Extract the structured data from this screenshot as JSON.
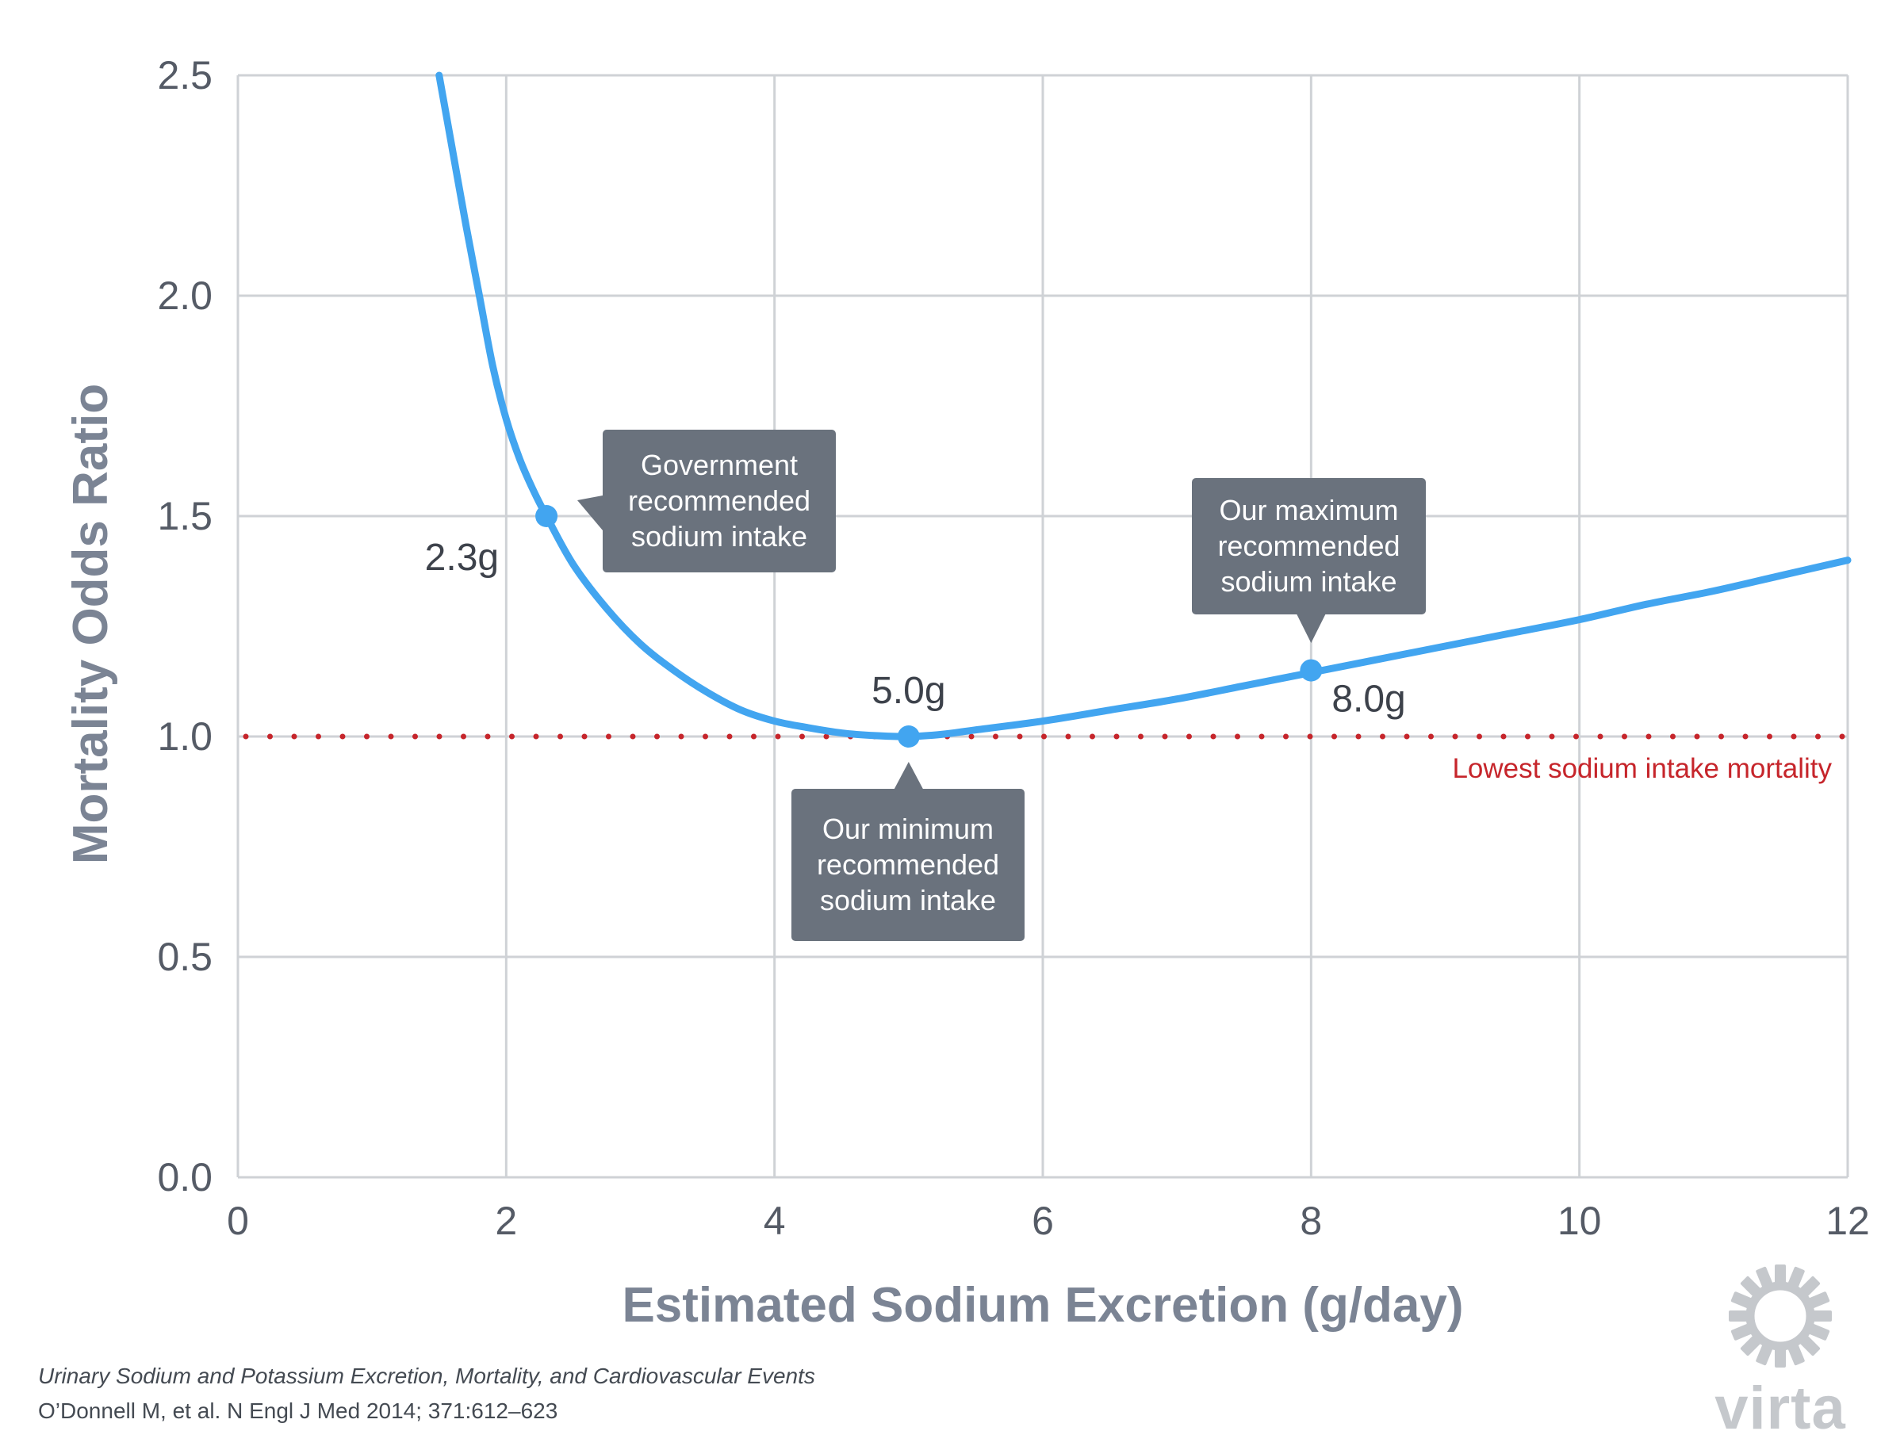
{
  "chart_data": {
    "type": "line",
    "xlabel": "Estimated Sodium Excretion (g/day)",
    "ylabel": "Mortality Odds Ratio",
    "xlim": [
      0,
      12
    ],
    "ylim": [
      0,
      2.5
    ],
    "x_ticks": [
      "0",
      "2",
      "4",
      "6",
      "8",
      "10",
      "12"
    ],
    "y_ticks": [
      "0.0",
      "0.5",
      "1.0",
      "1.5",
      "2.0",
      "2.5"
    ],
    "grid": true,
    "series": [
      {
        "color": "#42a5f0",
        "x": [
          1.5,
          1.6,
          1.7,
          1.8,
          1.9,
          2.0,
          2.1,
          2.2,
          2.3,
          2.5,
          2.75,
          3.0,
          3.25,
          3.5,
          3.75,
          4.0,
          4.25,
          4.5,
          4.75,
          5.0,
          5.25,
          5.5,
          6.0,
          6.5,
          7.0,
          7.5,
          8.0,
          8.5,
          9.0,
          9.5,
          10.0,
          10.5,
          11.0,
          11.5,
          12.0
        ],
        "y": [
          2.5,
          2.33,
          2.16,
          2.0,
          1.84,
          1.72,
          1.63,
          1.56,
          1.5,
          1.39,
          1.29,
          1.21,
          1.15,
          1.1,
          1.06,
          1.035,
          1.02,
          1.008,
          1.002,
          1.0,
          1.005,
          1.015,
          1.035,
          1.06,
          1.085,
          1.115,
          1.145,
          1.175,
          1.205,
          1.235,
          1.265,
          1.3,
          1.33,
          1.365,
          1.4
        ]
      }
    ],
    "reference_line": {
      "y": 1.0,
      "label": "Lowest sodium intake mortality",
      "color": "#c6252b",
      "style": "dotted"
    },
    "highlights": [
      {
        "x": 2.3,
        "y": 1.5,
        "label": "2.3g",
        "callout": [
          "Government",
          "recommended",
          "sodium intake"
        ]
      },
      {
        "x": 5.0,
        "y": 1.0,
        "label": "5.0g",
        "callout": [
          "Our minimum",
          "recommended",
          "sodium intake"
        ]
      },
      {
        "x": 8.0,
        "y": 1.15,
        "label": "8.0g",
        "callout": [
          "Our maximum",
          "recommended",
          "sodium intake"
        ]
      }
    ]
  },
  "citation": {
    "title": "Urinary Sodium and Potassium Excretion, Mortality, and Cardiovascular Events",
    "reference": "O’Donnell M, et al. N Engl J Med 2014; 371:612–623"
  },
  "brand": {
    "name": "virta",
    "icon": "sun-icon"
  },
  "colors": {
    "curve": "#42a5f0",
    "reference": "#c6252b",
    "callout_bg": "#6a727d",
    "grid": "#cfd2d6",
    "axis_title": "#7b8494"
  }
}
